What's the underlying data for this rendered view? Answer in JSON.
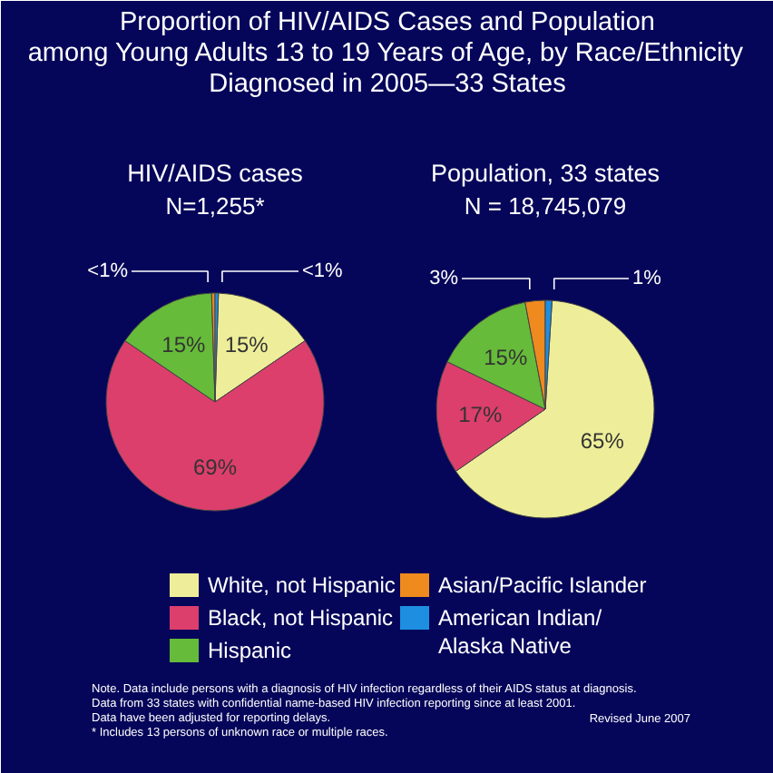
{
  "chart_data": [
    {
      "type": "pie",
      "title": "HIV/AIDS cases",
      "subtitle": "N=1,255*",
      "categories": [
        "White, not Hispanic",
        "Black, not Hispanic",
        "Hispanic",
        "Asian/Pacific Islander",
        "American Indian/\nAlaska Native"
      ],
      "values": [
        15,
        69,
        15,
        0.5,
        0.5
      ],
      "value_labels": [
        "15%",
        "69%",
        "15%",
        "<1%",
        "<1%"
      ],
      "colors": [
        "#eeee9a",
        "#dc3f6c",
        "#66bb3a",
        "#ee8a1e",
        "#1e8ee0"
      ],
      "legend": "bottom",
      "annotations": [
        "Proportion of HIV/AIDS Cases and Population\namong Young Adults 13 to 19 Years of Age, by Race/Ethnicity\nDiagnosed in 2005—33 States"
      ]
    },
    {
      "type": "pie",
      "title": "Population, 33 states",
      "subtitle": "N = 18,745,079",
      "categories": [
        null,
        null,
        null,
        null,
        null
      ],
      "values": [
        65,
        17,
        15,
        3,
        1
      ],
      "value_labels": [
        "65%",
        "17%",
        "15%",
        "3%",
        "1%"
      ],
      "colors": [
        "#eeee9a",
        "#dc3f6c",
        "#66bb3a",
        "#ee8a1e",
        "#1e8ee0"
      ],
      "annotations": [
        "Note. Data include persons with a diagnosis of HIV infection regardless of their AIDS status at diagnosis.\n      Data from 33 states with confidential name-based HIV infection reporting since at least 2001.\n      Data have been adjusted for reporting delays.\n* Includes 13 persons of unknown race or multiple races.",
        "Revised June 2007"
      ]
    }
  ]
}
